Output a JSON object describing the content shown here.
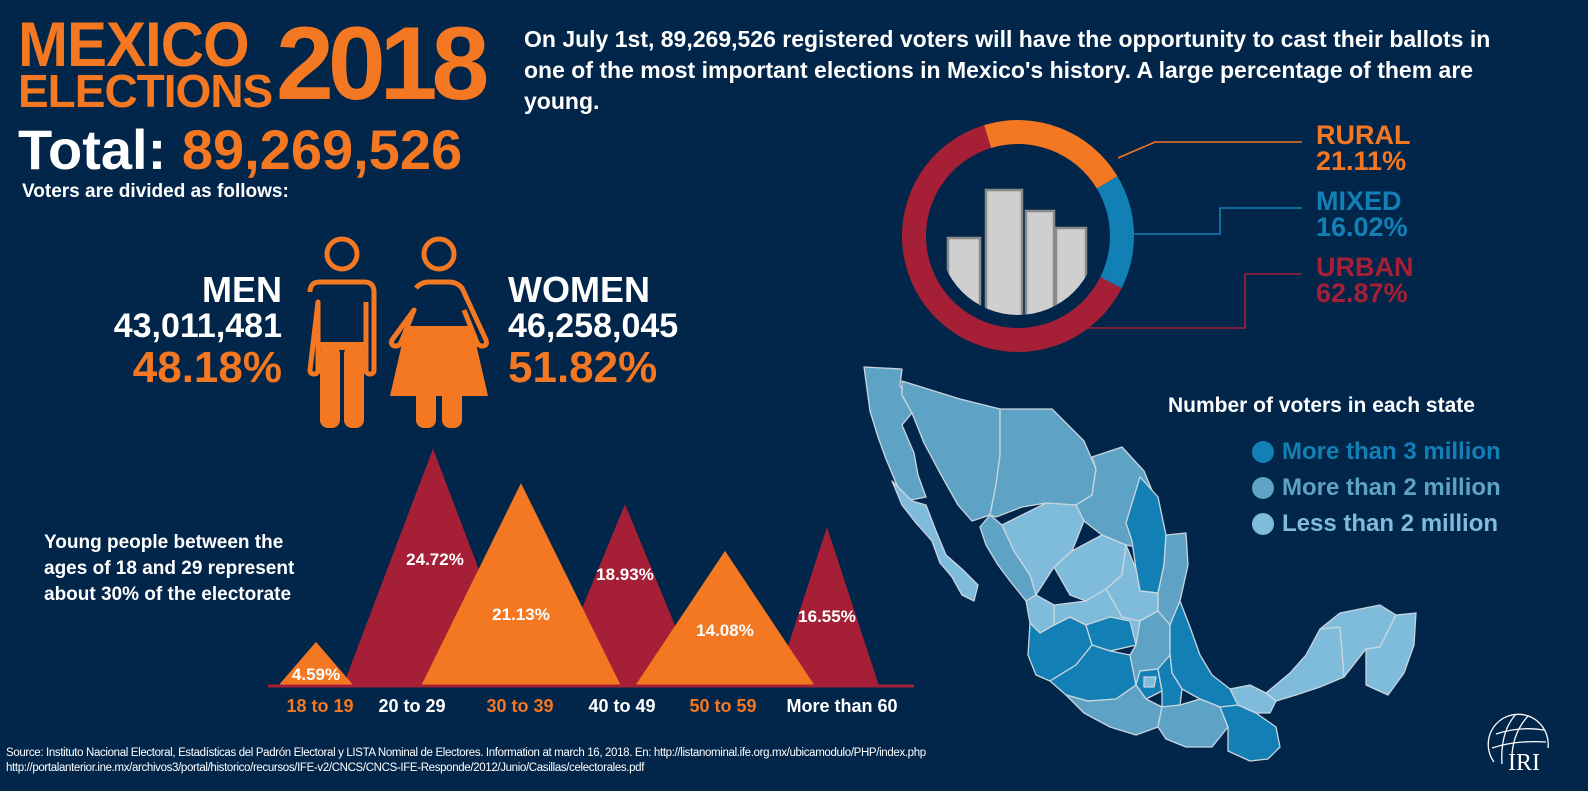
{
  "header": {
    "title_line1": "MEXICO",
    "title_line2": "ELECTIONS",
    "title_year": "2018",
    "total_label": "Total:",
    "total_value": "89,269,526",
    "divided_text": "Voters are divided as follows:",
    "intro_text": "On July 1st, 89,269,526 registered voters will have the opportunity to cast their ballots in one of the most important elections in Mexico's history. A large percentage of them are young."
  },
  "gender": {
    "men": {
      "label": "MEN",
      "count": "43,011,481",
      "percent": "48.18%"
    },
    "women": {
      "label": "WOMEN",
      "count": "46,258,045",
      "percent": "51.82%"
    }
  },
  "colors": {
    "background": "#02254a",
    "orange": "#f47721",
    "red": "#a52036",
    "blue": "#1380b5",
    "map_dark": "#1380b5",
    "map_mid": "#5ea3c6",
    "map_light": "#7fbcdb",
    "building": "#cfcfcf"
  },
  "chart_data": [
    {
      "type": "pie",
      "title": "",
      "categories": [
        "RURAL",
        "MIXED",
        "URBAN"
      ],
      "values": [
        21.11,
        16.02,
        62.87
      ],
      "labels": [
        "21.11%",
        "16.02%",
        "62.87%"
      ],
      "colors": [
        "#f47721",
        "#1380b5",
        "#a52036"
      ],
      "legend_placement": "right"
    },
    {
      "type": "bar",
      "title": "",
      "categories": [
        "18 to 19",
        "20 to 29",
        "30 to 39",
        "40 to 49",
        "50 to 59",
        "More than 60"
      ],
      "values": [
        4.59,
        24.72,
        21.13,
        18.93,
        14.08,
        16.55
      ],
      "labels": [
        "4.59%",
        "24.72%",
        "21.13%",
        "18.93%",
        "14.08%",
        "16.55%"
      ],
      "colors": [
        "#f47721",
        "#a52036",
        "#f47721",
        "#a52036",
        "#f47721",
        "#a52036"
      ],
      "ylim": [
        0,
        25
      ]
    }
  ],
  "age_note": {
    "lines": [
      "Young people between the",
      "ages of 18 and 29 represent",
      "about 30% of the electorate"
    ]
  },
  "map_legend": {
    "title": "Number of voters in each state",
    "items": [
      {
        "label": "More than 3 million",
        "color": "#1380b5"
      },
      {
        "label": "More than 2 million",
        "color": "#5ea3c6"
      },
      {
        "label": "Less than 2 million",
        "color": "#7fbcdb"
      }
    ]
  },
  "footer": {
    "source_line1": "Source: Instituto Nacional Electoral, Estadísticas del Padrón Electoral y LISTA Nominal de Electores. Information at march 16, 2018. En:  http://listanominal.ife.org.mx/ubicamodulo/PHP/index.php",
    "source_line2": "http://portalanterior.ine.mx/archivos3/portal/historico/recursos/IFE-v2/CNCS/CNCS-IFE-Responde/2012/Junio/Casillas/celectorales.pdf",
    "logo_text": "IRI"
  }
}
